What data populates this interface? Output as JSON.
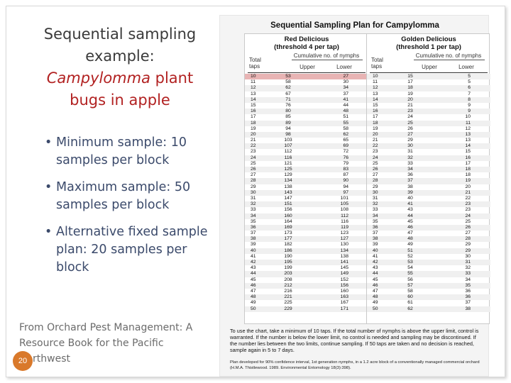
{
  "slide": {
    "title_line1": "Sequential sampling",
    "title_line2": "example:",
    "title_red_italic": "Campylomma",
    "title_red_rest": " plant",
    "title_red_line2": "bugs in apple",
    "bullets": [
      "Minimum sample: 10 samples per block",
      "Maximum sample: 50 samples per block",
      "Alternative fixed sample plan: 20 samples per block"
    ],
    "source": "From Orchard Pest Management: A Resource Book for the Pacific Northwest",
    "page_number": "20"
  },
  "plan": {
    "title": "Sequential Sampling Plan for Campylomma",
    "red": {
      "title_line1": "Red Delicious",
      "title_line2": "(threshold 4 per tap)",
      "cumulative_label": "Cumulative no. of nymphs",
      "taps_label": "Total taps",
      "upper_label": "Upper",
      "lower_label": "Lower",
      "rows": [
        [
          "10",
          "53",
          "27"
        ],
        [
          "11",
          "58",
          "30"
        ],
        [
          "12",
          "62",
          "34"
        ],
        [
          "13",
          "67",
          "37"
        ],
        [
          "14",
          "71",
          "41"
        ],
        [
          "15",
          "76",
          "44"
        ],
        [
          "16",
          "80",
          "48"
        ],
        [
          "17",
          "85",
          "51"
        ],
        [
          "18",
          "89",
          "55"
        ],
        [
          "19",
          "94",
          "58"
        ],
        [
          "20",
          "98",
          "62"
        ],
        [
          "21",
          "103",
          "65"
        ],
        [
          "22",
          "107",
          "69"
        ],
        [
          "23",
          "112",
          "72"
        ],
        [
          "24",
          "116",
          "76"
        ],
        [
          "25",
          "121",
          "79"
        ],
        [
          "26",
          "125",
          "83"
        ],
        [
          "27",
          "129",
          "87"
        ],
        [
          "28",
          "134",
          "90"
        ],
        [
          "29",
          "138",
          "94"
        ],
        [
          "30",
          "143",
          "97"
        ],
        [
          "31",
          "147",
          "101"
        ],
        [
          "32",
          "151",
          "105"
        ],
        [
          "33",
          "156",
          "108"
        ],
        [
          "34",
          "160",
          "112"
        ],
        [
          "35",
          "164",
          "116"
        ],
        [
          "36",
          "169",
          "119"
        ],
        [
          "37",
          "173",
          "123"
        ],
        [
          "38",
          "177",
          "127"
        ],
        [
          "39",
          "182",
          "130"
        ],
        [
          "40",
          "186",
          "134"
        ],
        [
          "41",
          "190",
          "138"
        ],
        [
          "42",
          "195",
          "141"
        ],
        [
          "43",
          "199",
          "145"
        ],
        [
          "44",
          "203",
          "149"
        ],
        [
          "45",
          "208",
          "152"
        ],
        [
          "46",
          "212",
          "156"
        ],
        [
          "47",
          "216",
          "160"
        ],
        [
          "48",
          "221",
          "163"
        ],
        [
          "49",
          "225",
          "167"
        ],
        [
          "50",
          "229",
          "171"
        ]
      ]
    },
    "golden": {
      "title_line1": "Golden Delicious",
      "title_line2": "(threshold 1 per tap)",
      "cumulative_label": "Cumulative no. of nymphs",
      "taps_label": "Total taps",
      "upper_label": "Upper",
      "lower_label": "Lower",
      "rows": [
        [
          "10",
          "15",
          "5"
        ],
        [
          "11",
          "17",
          "5"
        ],
        [
          "12",
          "18",
          "6"
        ],
        [
          "13",
          "19",
          "7"
        ],
        [
          "14",
          "20",
          "8"
        ],
        [
          "15",
          "21",
          "9"
        ],
        [
          "16",
          "23",
          "9"
        ],
        [
          "17",
          "24",
          "10"
        ],
        [
          "18",
          "25",
          "11"
        ],
        [
          "19",
          "26",
          "12"
        ],
        [
          "20",
          "27",
          "13"
        ],
        [
          "21",
          "29",
          "13"
        ],
        [
          "22",
          "30",
          "14"
        ],
        [
          "23",
          "31",
          "15"
        ],
        [
          "24",
          "32",
          "16"
        ],
        [
          "25",
          "33",
          "17"
        ],
        [
          "26",
          "34",
          "18"
        ],
        [
          "27",
          "36",
          "18"
        ],
        [
          "28",
          "37",
          "19"
        ],
        [
          "29",
          "38",
          "20"
        ],
        [
          "30",
          "39",
          "21"
        ],
        [
          "31",
          "40",
          "22"
        ],
        [
          "32",
          "41",
          "23"
        ],
        [
          "33",
          "43",
          "23"
        ],
        [
          "34",
          "44",
          "24"
        ],
        [
          "35",
          "45",
          "25"
        ],
        [
          "36",
          "46",
          "26"
        ],
        [
          "37",
          "47",
          "27"
        ],
        [
          "38",
          "48",
          "28"
        ],
        [
          "39",
          "49",
          "29"
        ],
        [
          "40",
          "51",
          "29"
        ],
        [
          "41",
          "52",
          "30"
        ],
        [
          "42",
          "53",
          "31"
        ],
        [
          "43",
          "54",
          "32"
        ],
        [
          "44",
          "55",
          "33"
        ],
        [
          "45",
          "56",
          "34"
        ],
        [
          "46",
          "57",
          "35"
        ],
        [
          "47",
          "58",
          "36"
        ],
        [
          "48",
          "60",
          "36"
        ],
        [
          "49",
          "61",
          "37"
        ],
        [
          "50",
          "62",
          "38"
        ]
      ]
    },
    "notes": "To use the chart, take a minimum of 10 taps. If the total number of nymphs is above the upper limit, control is warranted. If the number is below the lower limit, no control is needed and sampling may be discontinued. If the number lies between the two limits, continue sampling. If 50 taps are taken and no decision is reached, sample again in 5 to 7 days.",
    "credit": "Plan developed for 90% confidence interval, 1st generation nymphs, in a 1.2 acre block of a conventionally managed commercial orchard (H.M.A. Thistlewood. 1989. Environmental Entomology 18(3):398)."
  }
}
